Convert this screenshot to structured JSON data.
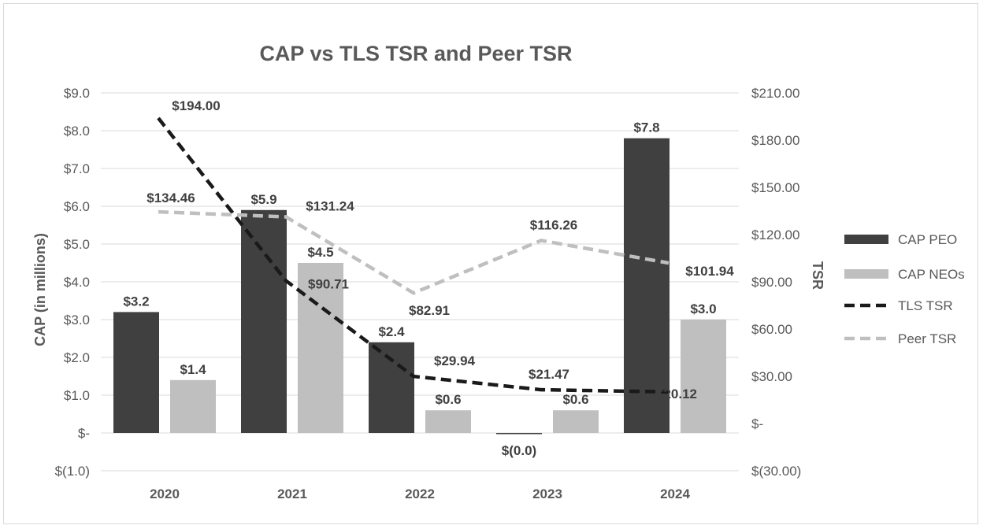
{
  "chart_data": {
    "type": "bar",
    "title": "CAP vs TLS TSR and Peer TSR",
    "categories": [
      "2020",
      "2021",
      "2022",
      "2023",
      "2024"
    ],
    "y_left": {
      "label": "CAP (in millions)",
      "ylim": [
        -1.0,
        9.0
      ],
      "ticks": [
        {
          "value": 9.0,
          "label": "$9.0"
        },
        {
          "value": 8.0,
          "label": "$8.0"
        },
        {
          "value": 7.0,
          "label": "$7.0"
        },
        {
          "value": 6.0,
          "label": "$6.0"
        },
        {
          "value": 5.0,
          "label": "$5.0"
        },
        {
          "value": 4.0,
          "label": "$4.0"
        },
        {
          "value": 3.0,
          "label": "$3.0"
        },
        {
          "value": 2.0,
          "label": "$2.0"
        },
        {
          "value": 1.0,
          "label": "$1.0"
        },
        {
          "value": 0.0,
          "label": "$-"
        },
        {
          "value": -1.0,
          "label": "$(1.0)"
        }
      ]
    },
    "y_right": {
      "label": "TSR",
      "ylim": [
        -30,
        210
      ],
      "ticks": [
        {
          "value": 210,
          "label": "$210.00"
        },
        {
          "value": 180,
          "label": "$180.00"
        },
        {
          "value": 150,
          "label": "$150.00"
        },
        {
          "value": 120,
          "label": "$120.00"
        },
        {
          "value": 90,
          "label": "$90.00"
        },
        {
          "value": 60,
          "label": "$60.00"
        },
        {
          "value": 30,
          "label": "$30.00"
        },
        {
          "value": 0,
          "label": "$-"
        },
        {
          "value": -30,
          "label": "$(30.00)"
        }
      ]
    },
    "bar_series": [
      {
        "name": "CAP PEO",
        "color": "#404040",
        "values": [
          3.2,
          5.9,
          2.4,
          -0.02,
          7.8
        ],
        "labels": [
          "$3.2",
          "$5.9",
          "$2.4",
          "$(0.0)",
          "$7.8"
        ]
      },
      {
        "name": "CAP NEOs",
        "color": "#bfbfbf",
        "values": [
          1.4,
          4.5,
          0.6,
          0.6,
          3.0
        ],
        "labels": [
          "$1.4",
          "$4.5",
          "$0.6",
          "$0.6",
          "$3.0"
        ]
      }
    ],
    "line_series": [
      {
        "name": "TLS TSR",
        "color": "#1a1a1a",
        "dashed": true,
        "values": [
          194.0,
          90.71,
          29.94,
          21.47,
          20.12
        ],
        "labels": [
          "$194.00",
          "$90.71",
          "$29.94",
          "$21.47",
          "$20.12"
        ]
      },
      {
        "name": "Peer TSR",
        "color": "#bfbfbf",
        "dashed": true,
        "values": [
          134.46,
          131.24,
          82.91,
          116.26,
          101.94
        ],
        "labels": [
          "$134.46",
          "$131.24",
          "$82.91",
          "$116.26",
          "$101.94"
        ]
      }
    ],
    "legend_position": "right",
    "grid": true
  }
}
